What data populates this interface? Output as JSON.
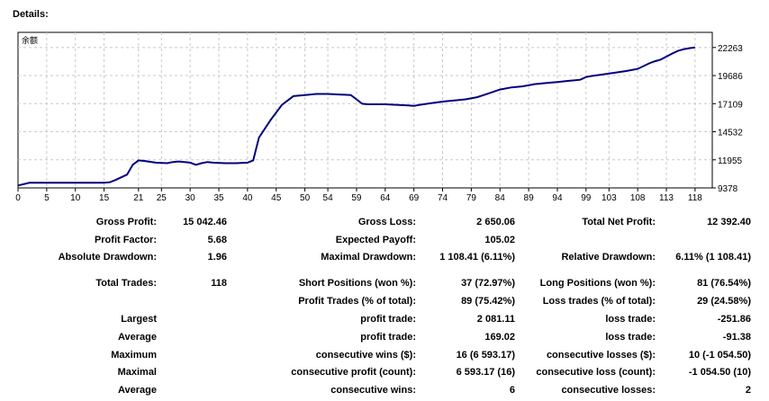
{
  "heading": "Details:",
  "chart_data": {
    "type": "line",
    "legend_label": "余额",
    "series": [
      {
        "color": "#000080",
        "x": [
          0,
          2,
          3,
          5,
          10,
          15,
          16,
          17,
          19,
          20,
          21,
          22,
          24,
          26,
          27,
          28,
          30,
          31,
          32,
          33,
          34,
          36,
          38,
          40,
          41,
          42,
          43,
          44,
          46,
          48,
          50,
          52,
          54,
          56,
          58,
          59,
          60,
          61,
          62,
          64,
          66,
          68,
          69,
          70,
          72,
          74,
          76,
          78,
          80,
          82,
          84,
          86,
          88,
          90,
          92,
          94,
          96,
          98,
          99,
          100,
          102,
          104,
          106,
          108,
          110,
          111,
          112,
          114,
          115,
          116,
          117,
          118
        ],
        "y": [
          9600,
          9850,
          9850,
          9850,
          9850,
          9850,
          9900,
          10100,
          10600,
          11500,
          11900,
          11850,
          11700,
          11650,
          11750,
          11800,
          11700,
          11500,
          11650,
          11750,
          11700,
          11650,
          11650,
          11700,
          11900,
          14000,
          14800,
          15600,
          17000,
          17800,
          17900,
          18000,
          18000,
          17950,
          17900,
          17500,
          17100,
          17050,
          17050,
          17050,
          17000,
          16950,
          16900,
          17000,
          17150,
          17300,
          17400,
          17500,
          17700,
          18050,
          18400,
          18600,
          18700,
          18900,
          19000,
          19100,
          19200,
          19300,
          19550,
          19650,
          19800,
          19950,
          20100,
          20300,
          20800,
          21000,
          21150,
          21700,
          21950,
          22100,
          22200,
          22263
        ]
      }
    ],
    "x_ticks": [
      0,
      5,
      10,
      15,
      21,
      25,
      30,
      35,
      40,
      45,
      50,
      54,
      59,
      64,
      69,
      74,
      79,
      84,
      89,
      94,
      99,
      103,
      108,
      113,
      118
    ],
    "y_ticks": [
      9378,
      11955,
      14532,
      17109,
      19686,
      22263
    ],
    "xlim": [
      0,
      121
    ],
    "ylim": [
      9378,
      23650
    ],
    "grid": true
  },
  "stats": {
    "gross_profit": {
      "label": "Gross Profit:",
      "value": "15 042.46"
    },
    "gross_loss": {
      "label": "Gross Loss:",
      "value": "2 650.06"
    },
    "total_net_profit": {
      "label": "Total Net Profit:",
      "value": "12 392.40"
    },
    "profit_factor": {
      "label": "Profit Factor:",
      "value": "5.68"
    },
    "expected_payoff": {
      "label": "Expected Payoff:",
      "value": "105.02"
    },
    "absolute_drawdown": {
      "label": "Absolute Drawdown:",
      "value": "1.96"
    },
    "maximal_drawdown": {
      "label": "Maximal Drawdown:",
      "value": "1 108.41 (6.11%)"
    },
    "relative_drawdown": {
      "label": "Relative Drawdown:",
      "value": "6.11% (1 108.41)"
    },
    "total_trades": {
      "label": "Total Trades:",
      "value": "118"
    },
    "short_positions": {
      "label": "Short Positions (won %):",
      "value": "37 (72.97%)"
    },
    "long_positions": {
      "label": "Long Positions (won %):",
      "value": "81 (76.54%)"
    },
    "profit_trades": {
      "label": "Profit Trades (% of total):",
      "value": "89 (75.42%)"
    },
    "loss_trades": {
      "label": "Loss trades (% of total):",
      "value": "29 (24.58%)"
    },
    "largest": {
      "label": "Largest",
      "mid_label": "profit trade:",
      "mid_value": "2 081.11",
      "right_label": "loss trade:",
      "right_value": "-251.86"
    },
    "average": {
      "label": "Average",
      "mid_label": "profit trade:",
      "mid_value": "169.02",
      "right_label": "loss trade:",
      "right_value": "-91.38"
    },
    "maximum": {
      "label": "Maximum",
      "mid_label": "consecutive wins ($):",
      "mid_value": "16 (6 593.17)",
      "right_label": "consecutive losses ($):",
      "right_value": "10 (-1 054.50)"
    },
    "maximal": {
      "label": "Maximal",
      "mid_label": "consecutive profit (count):",
      "mid_value": "6 593.17 (16)",
      "right_label": "consecutive loss (count):",
      "right_value": "-1 054.50 (10)"
    },
    "average2": {
      "label": "Average",
      "mid_label": "consecutive wins:",
      "mid_value": "6",
      "right_label": "consecutive losses:",
      "right_value": "2"
    }
  }
}
